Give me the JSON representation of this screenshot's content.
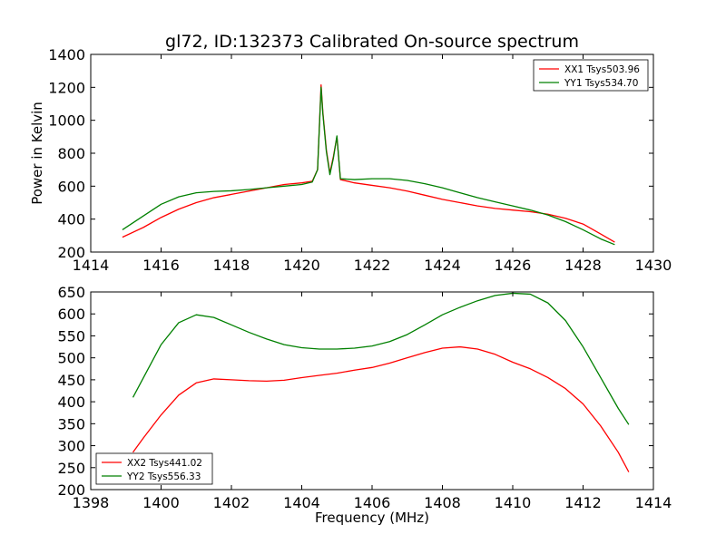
{
  "chart_data": [
    {
      "type": "line",
      "title": "gl72, ID:132373 Calibrated On-source spectrum",
      "xlabel": "",
      "ylabel": "Power in Kelvin",
      "xlim": [
        1414,
        1430
      ],
      "ylim": [
        200,
        1400
      ],
      "xticks": [
        1414,
        1416,
        1418,
        1420,
        1422,
        1424,
        1426,
        1428,
        1430
      ],
      "yticks": [
        200,
        400,
        600,
        800,
        1000,
        1200,
        1400
      ],
      "legend_position": "upper-right",
      "series": [
        {
          "name": "XX1 Tsys503.96",
          "color": "#ff0000",
          "x": [
            1414.9,
            1415.5,
            1416,
            1416.5,
            1417,
            1417.5,
            1418,
            1418.5,
            1419,
            1419.5,
            1420,
            1420.3,
            1420.45,
            1420.55,
            1420.6,
            1420.7,
            1420.8,
            1420.9,
            1421.0,
            1421.1,
            1421.5,
            1422,
            1422.5,
            1423,
            1423.5,
            1424,
            1424.5,
            1425,
            1425.5,
            1426,
            1426.5,
            1427,
            1427.5,
            1428,
            1428.5,
            1428.9
          ],
          "y": [
            290,
            350,
            410,
            460,
            500,
            530,
            550,
            570,
            590,
            610,
            620,
            630,
            700,
            1215,
            1050,
            820,
            680,
            780,
            900,
            640,
            620,
            605,
            590,
            570,
            545,
            520,
            500,
            480,
            465,
            455,
            445,
            430,
            405,
            370,
            310,
            260
          ]
        },
        {
          "name": "YY1 Tsys534.70",
          "color": "#008000",
          "x": [
            1414.9,
            1415.5,
            1416,
            1416.5,
            1417,
            1417.5,
            1418,
            1418.5,
            1419,
            1419.5,
            1420,
            1420.3,
            1420.45,
            1420.55,
            1420.6,
            1420.7,
            1420.8,
            1420.9,
            1421.0,
            1421.1,
            1421.5,
            1422,
            1422.5,
            1423,
            1423.5,
            1424,
            1424.5,
            1425,
            1425.5,
            1426,
            1426.5,
            1427,
            1427.5,
            1428,
            1428.5,
            1428.9
          ],
          "y": [
            335,
            420,
            490,
            535,
            560,
            568,
            572,
            580,
            590,
            600,
            610,
            625,
            700,
            1200,
            1040,
            810,
            670,
            770,
            905,
            645,
            640,
            645,
            645,
            635,
            615,
            590,
            560,
            530,
            505,
            480,
            455,
            425,
            385,
            335,
            280,
            245
          ]
        }
      ]
    },
    {
      "type": "line",
      "title": "",
      "xlabel": "Frequency (MHz)",
      "ylabel": "",
      "xlim": [
        1398,
        1414
      ],
      "ylim": [
        200,
        650
      ],
      "xticks": [
        1398,
        1400,
        1402,
        1404,
        1406,
        1408,
        1410,
        1412,
        1414
      ],
      "yticks": [
        200,
        250,
        300,
        350,
        400,
        450,
        500,
        550,
        600,
        650
      ],
      "legend_position": "lower-left",
      "series": [
        {
          "name": "XX2 Tsys441.02",
          "color": "#ff0000",
          "x": [
            1399.2,
            1399.5,
            1400,
            1400.5,
            1401,
            1401.5,
            1402,
            1402.5,
            1403,
            1403.5,
            1404,
            1404.5,
            1405,
            1405.5,
            1406,
            1406.5,
            1407,
            1407.5,
            1408,
            1408.5,
            1409,
            1409.5,
            1410,
            1410.5,
            1411,
            1411.5,
            1412,
            1412.5,
            1413,
            1413.3
          ],
          "y": [
            285,
            318,
            370,
            415,
            443,
            452,
            450,
            448,
            447,
            449,
            455,
            460,
            465,
            472,
            478,
            488,
            500,
            512,
            522,
            525,
            520,
            508,
            490,
            475,
            455,
            430,
            395,
            345,
            285,
            240
          ]
        },
        {
          "name": "YY2 Tsys556.33",
          "color": "#008000",
          "x": [
            1399.2,
            1399.5,
            1400,
            1400.5,
            1401,
            1401.5,
            1402,
            1402.5,
            1403,
            1403.5,
            1404,
            1404.5,
            1405,
            1405.5,
            1406,
            1406.5,
            1407,
            1407.5,
            1408,
            1408.5,
            1409,
            1409.5,
            1410,
            1410.5,
            1411,
            1411.5,
            1412,
            1412.5,
            1413,
            1413.3
          ],
          "y": [
            410,
            455,
            530,
            580,
            598,
            592,
            575,
            558,
            543,
            530,
            523,
            520,
            520,
            522,
            527,
            537,
            553,
            575,
            598,
            615,
            630,
            642,
            647,
            645,
            625,
            585,
            525,
            455,
            385,
            348
          ]
        }
      ]
    }
  ]
}
